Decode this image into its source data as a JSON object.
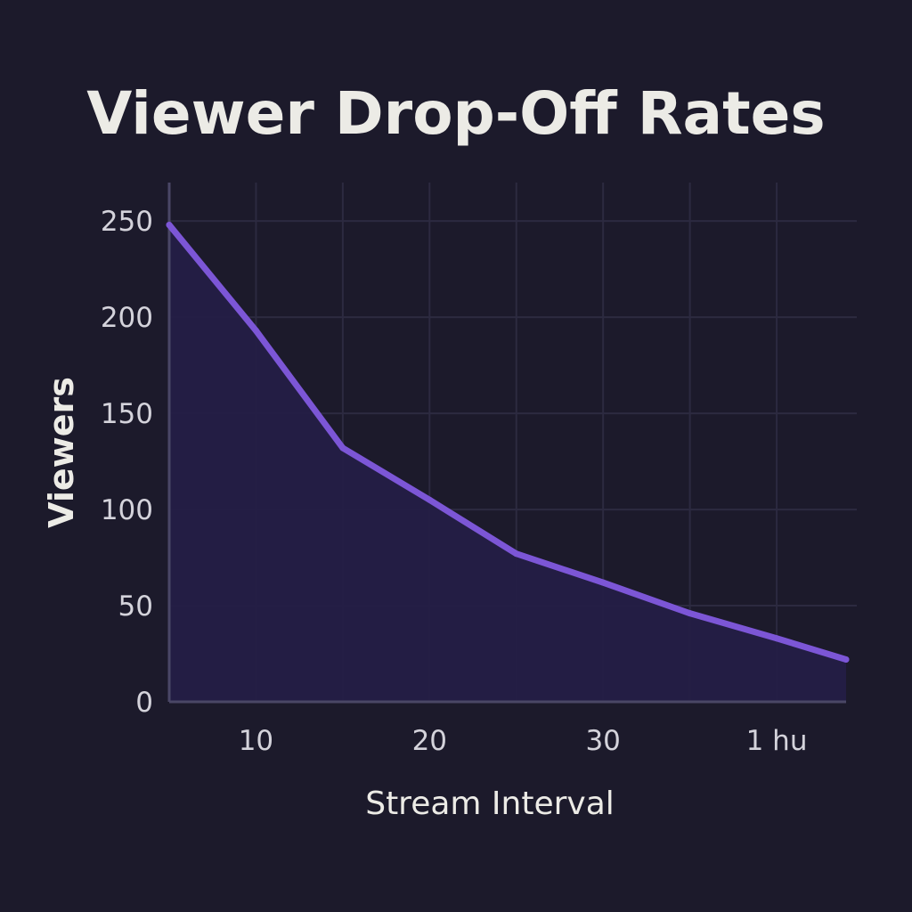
{
  "chart_data": {
    "type": "area",
    "title": "Viewer Drop-Off Rates",
    "xlabel": "Stream Interval",
    "ylabel": "Viewers",
    "x": [
      5,
      10,
      15,
      20,
      25,
      30,
      35,
      40,
      44
    ],
    "values": [
      248,
      193,
      132,
      105,
      77,
      62,
      46,
      33,
      22
    ],
    "xlim": [
      5,
      44
    ],
    "ylim": [
      0,
      270
    ],
    "x_ticks": [
      {
        "value": 10,
        "label": "10"
      },
      {
        "value": 20,
        "label": "20"
      },
      {
        "value": 30,
        "label": "30"
      },
      {
        "value": 40,
        "label": "1 hu"
      }
    ],
    "y_ticks": [
      0,
      50,
      100,
      150,
      200,
      250
    ],
    "grid": true,
    "legend": "none"
  },
  "colors": {
    "background": "#1c1a2b",
    "line": "#7c56d6",
    "area_fill": "#241d46",
    "grid": "#2c2a40",
    "axis": "#4a4766",
    "text": "#ecebe6",
    "tick_text": "#d4d3db"
  }
}
